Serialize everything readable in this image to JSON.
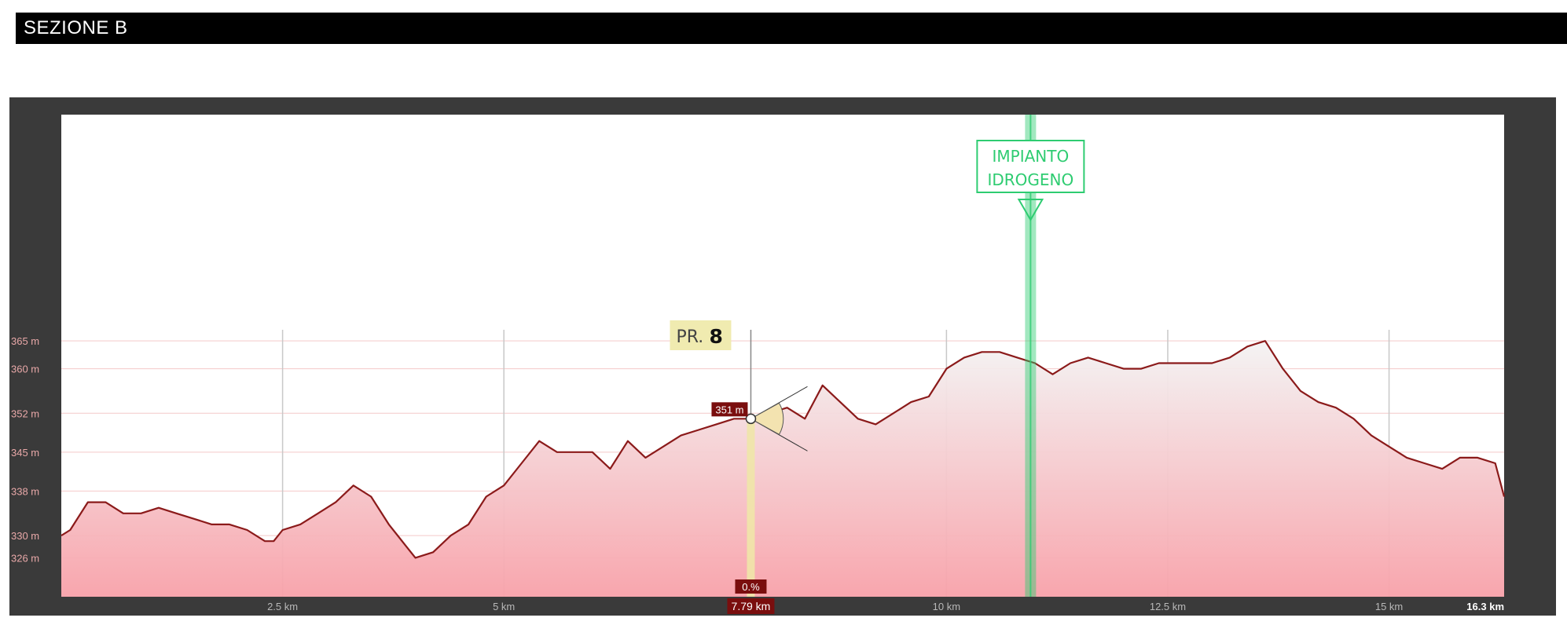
{
  "header": {
    "title": "SEZIONE B"
  },
  "chart_data": {
    "type": "area",
    "xlim": [
      0,
      16.3
    ],
    "ylim": [
      319,
      367
    ],
    "x_ticks": [
      {
        "value": 2.5,
        "label": "2.5 km"
      },
      {
        "value": 5,
        "label": "5 km"
      },
      {
        "value": 10,
        "label": "10 km"
      },
      {
        "value": 12.5,
        "label": "12.5 km"
      },
      {
        "value": 15,
        "label": "15 km"
      }
    ],
    "x_end_label": "16.3 km",
    "y_ticks": [
      {
        "value": 365,
        "label": "365 m"
      },
      {
        "value": 360,
        "label": "360 m"
      },
      {
        "value": 352,
        "label": "352 m"
      },
      {
        "value": 345,
        "label": "345 m"
      },
      {
        "value": 338,
        "label": "338 m"
      },
      {
        "value": 330,
        "label": "330 m"
      },
      {
        "value": 326,
        "label": "326 m"
      }
    ],
    "series": [
      {
        "x": [
          0,
          0.1,
          0.3,
          0.5,
          0.7,
          0.9,
          1.1,
          1.3,
          1.5,
          1.7,
          1.9,
          2.1,
          2.3,
          2.4,
          2.5,
          2.7,
          2.9,
          3.1,
          3.3,
          3.5,
          3.7,
          3.9,
          4.0,
          4.2,
          4.4,
          4.6,
          4.8,
          5.0,
          5.2,
          5.4,
          5.6,
          5.8,
          6.0,
          6.2,
          6.4,
          6.6,
          6.8,
          7.0,
          7.2,
          7.4,
          7.6,
          7.79,
          8.0,
          8.2,
          8.4,
          8.6,
          8.8,
          9.0,
          9.2,
          9.4,
          9.6,
          9.8,
          10.0,
          10.2,
          10.4,
          10.6,
          10.8,
          11.0,
          11.2,
          11.4,
          11.6,
          11.8,
          12.0,
          12.2,
          12.4,
          12.6,
          12.8,
          13.0,
          13.2,
          13.4,
          13.6,
          13.8,
          14.0,
          14.2,
          14.4,
          14.6,
          14.8,
          15.0,
          15.2,
          15.4,
          15.6,
          15.8,
          16.0,
          16.2,
          16.3
        ],
        "y": [
          330,
          331,
          336,
          336,
          334,
          334,
          335,
          334,
          333,
          332,
          332,
          331,
          329,
          329,
          331,
          332,
          334,
          336,
          339,
          337,
          332,
          328,
          326,
          327,
          330,
          332,
          337,
          339,
          343,
          347,
          345,
          345,
          345,
          342,
          347,
          344,
          346,
          348,
          349,
          350,
          351,
          351,
          352,
          353,
          351,
          357,
          354,
          351,
          350,
          352,
          354,
          355,
          360,
          362,
          363,
          363,
          362,
          361,
          359,
          361,
          362,
          361,
          360,
          360,
          361,
          361,
          361,
          361,
          362,
          364,
          365,
          360,
          356,
          354,
          353,
          351,
          348,
          346,
          344,
          343,
          342,
          344,
          344,
          343,
          337
        ]
      }
    ],
    "cursor": {
      "x": 7.79,
      "x_label": "7.79 km",
      "elevation_label": "351 m",
      "grade_label": "0.%",
      "point_label_prefix": "PR.",
      "point_label_number": "8"
    },
    "marker": {
      "x": 10.95,
      "label_line1": "IMPIANTO",
      "label_line2": "IDROGENO"
    }
  },
  "colors": {
    "frame": "#3a3a3a",
    "line": "#8b1a1a",
    "fill_top": "#f4f4f4",
    "fill_bottom": "#f7a3aa",
    "marker": "#2ecc71",
    "cursor": "#f0e6a8",
    "label_box": "#7a0e0e"
  }
}
